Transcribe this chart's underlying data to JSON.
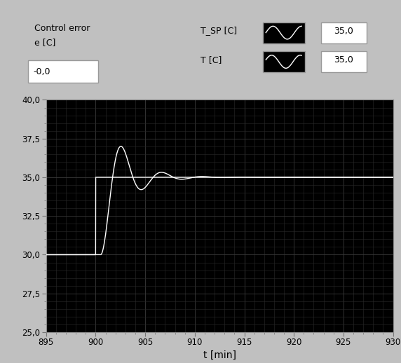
{
  "xlabel": "t [min]",
  "xlim": [
    895,
    930
  ],
  "ylim": [
    25.0,
    40.0
  ],
  "xticks": [
    895,
    900,
    905,
    910,
    915,
    920,
    925,
    930
  ],
  "yticks": [
    25.0,
    27.5,
    30.0,
    32.5,
    35.0,
    37.5,
    40.0
  ],
  "bg_color": "#000000",
  "fig_bg_color": "#c0c0c0",
  "line_color": "#ffffff",
  "grid_major_color": "#3a3a3a",
  "grid_minor_color": "#2a2a2a",
  "control_error_label1": "Control error",
  "control_error_label2": "e [C]",
  "control_error_value": "-0,0",
  "legend_entries": [
    {
      "label": "T_SP [C]",
      "value": "35,0"
    },
    {
      "label": "T [C]",
      "value": "35,0"
    }
  ],
  "sp_before": 30.0,
  "sp_after": 35.0,
  "step_time": 900.0,
  "pv_delay": 0.5,
  "pv_omega": 1.6,
  "pv_zeta": 0.28
}
